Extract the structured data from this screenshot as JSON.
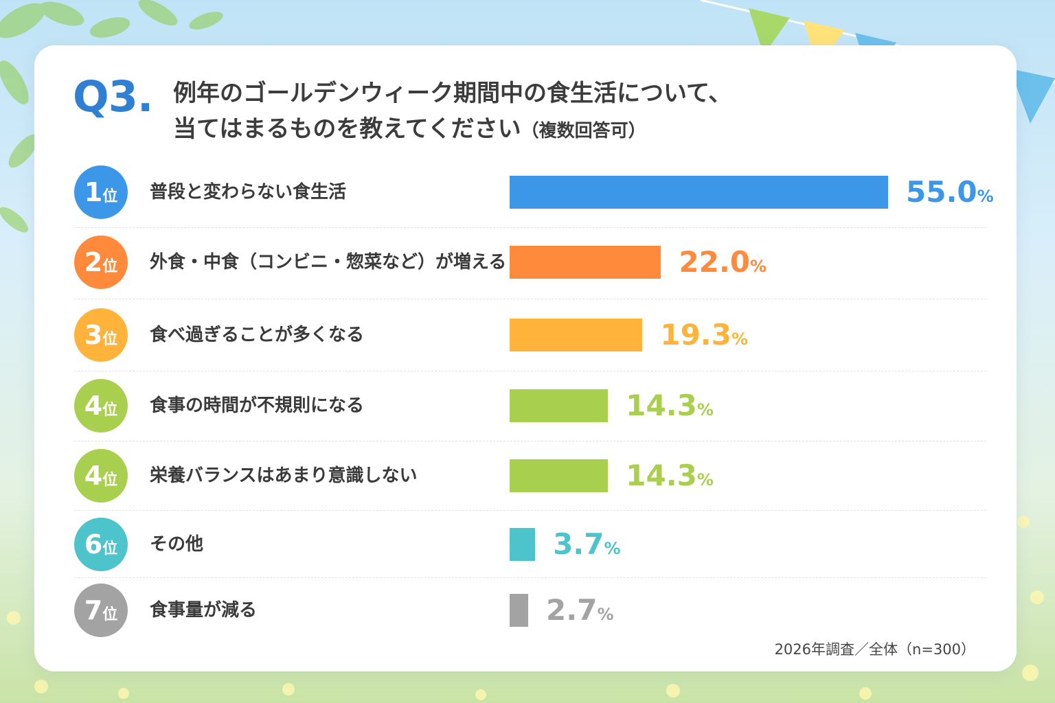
{
  "question": {
    "number": "Q3.",
    "title_line1": "例年のゴールデンウィーク期間中の食生活について、",
    "title_line2": "当てはまるものを教えてください",
    "note": "（複数回答可）"
  },
  "rank_suffix": "位",
  "percent_suffix": "%",
  "footnote": "2026年調査／全体（n=300）",
  "colors": {
    "blue": "#3d97e8",
    "orange": "#ff8a3c",
    "yellow": "#ffb33a",
    "green": "#a9cf4f",
    "teal": "#4dc3cc",
    "gray": "#a3a3a3",
    "question_blue": "#2f7fd2"
  },
  "chart_data": {
    "type": "bar",
    "orientation": "horizontal",
    "categories": [
      "普段と変わらない食生活",
      "外食・中食（コンビニ・惣菜など）が増える",
      "食べ過ぎることが多くなる",
      "食事の時間が不規則になる",
      "栄養バランスはあまり意識しない",
      "その他",
      "食事量が減る"
    ],
    "ranks": [
      "1",
      "2",
      "3",
      "4",
      "4",
      "6",
      "7"
    ],
    "values": [
      55.0,
      22.0,
      19.3,
      14.3,
      14.3,
      3.7,
      2.7
    ],
    "value_labels": [
      "55.0",
      "22.0",
      "19.3",
      "14.3",
      "14.3",
      "3.7",
      "2.7"
    ],
    "bar_colors": [
      "#3d97e8",
      "#ff8a3c",
      "#ffb33a",
      "#a9cf4f",
      "#a9cf4f",
      "#4dc3cc",
      "#a3a3a3"
    ],
    "unit": "%",
    "xlim": [
      0,
      55
    ],
    "grid": false,
    "legend": "none"
  }
}
